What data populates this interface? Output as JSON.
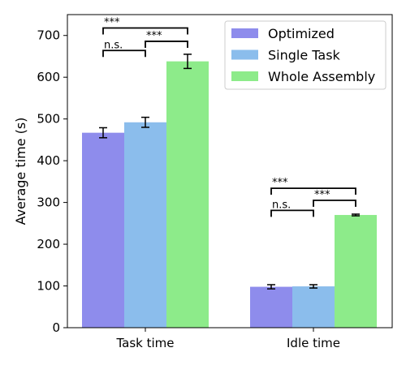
{
  "chart_data": {
    "type": "bar",
    "title": "",
    "xlabel": "",
    "ylabel": "Average time (s)",
    "ylim": [
      0,
      750
    ],
    "yticks": [
      0,
      100,
      200,
      300,
      400,
      500,
      600,
      700
    ],
    "categories": [
      "Task time",
      "Idle time"
    ],
    "series": [
      {
        "name": "Optimized",
        "color": "#8e8cec",
        "values": [
          467,
          98
        ],
        "errors": [
          12,
          5
        ]
      },
      {
        "name": "Single Task",
        "color": "#8bbdec",
        "values": [
          492,
          99
        ],
        "errors": [
          12,
          4
        ]
      },
      {
        "name": "Whole Assembly",
        "color": "#8deb8a",
        "values": [
          638,
          270
        ],
        "errors": [
          17,
          2
        ]
      }
    ],
    "legend": {
      "position": "top-right"
    },
    "grid": false,
    "significance": [
      {
        "category": 0,
        "from": 0,
        "to": 2,
        "label": "***",
        "y": 718
      },
      {
        "category": 0,
        "from": 0,
        "to": 1,
        "label": "n.s.",
        "y": 664
      },
      {
        "category": 0,
        "from": 1,
        "to": 2,
        "label": "***",
        "y": 686
      },
      {
        "category": 1,
        "from": 0,
        "to": 2,
        "label": "***",
        "y": 334
      },
      {
        "category": 1,
        "from": 0,
        "to": 1,
        "label": "n.s.",
        "y": 281
      },
      {
        "category": 1,
        "from": 1,
        "to": 2,
        "label": "***",
        "y": 305
      }
    ]
  }
}
